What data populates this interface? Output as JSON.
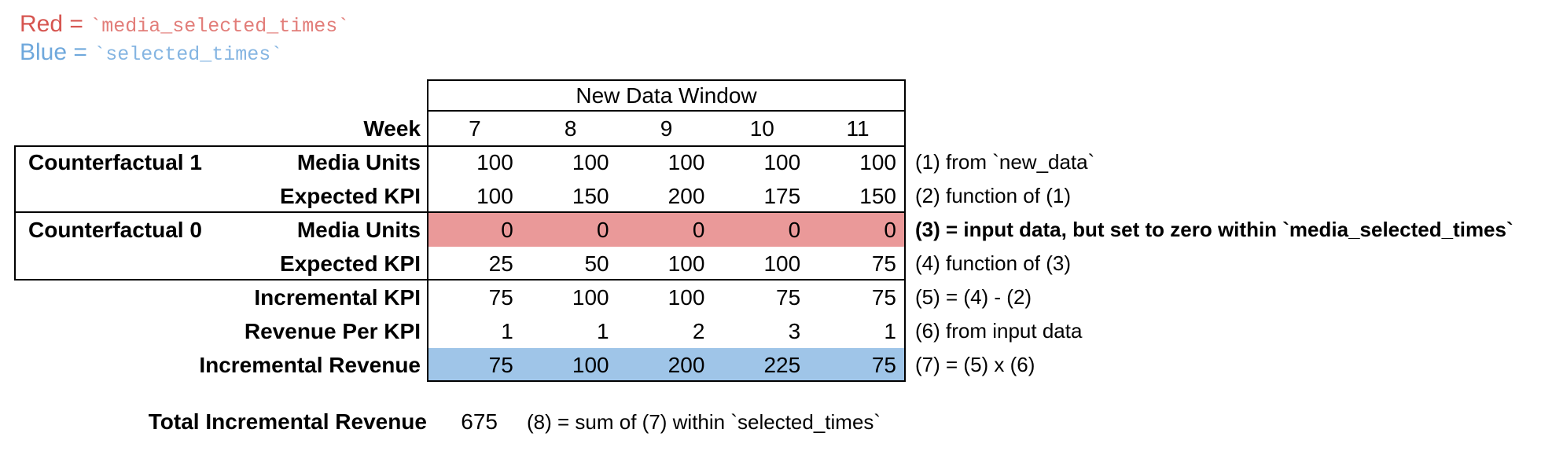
{
  "legend": {
    "red_prefix": "Red = ",
    "red_code": "`media_selected_times`",
    "blue_prefix": "Blue = ",
    "blue_code": "`selected_times`"
  },
  "table": {
    "header": "New Data Window",
    "week_label": "Week",
    "weeks": [
      "7",
      "8",
      "9",
      "10",
      "11"
    ],
    "rows": [
      {
        "group": "Counterfactual 1",
        "label": "Media Units",
        "values": [
          "100",
          "100",
          "100",
          "100",
          "100"
        ],
        "note": "(1) from `new_data`",
        "fill": "",
        "note_bold": false
      },
      {
        "group": "",
        "label": "Expected KPI",
        "values": [
          "100",
          "150",
          "200",
          "175",
          "150"
        ],
        "note": "(2) function of (1)",
        "fill": "",
        "note_bold": false
      },
      {
        "group": "Counterfactual 0",
        "label": "Media Units",
        "values": [
          "0",
          "0",
          "0",
          "0",
          "0"
        ],
        "note": "(3) = input data, but set to zero within `media_selected_times`",
        "fill": "red",
        "note_bold": true
      },
      {
        "group": "",
        "label": "Expected KPI",
        "values": [
          "25",
          "50",
          "100",
          "100",
          "75"
        ],
        "note": "(4) function of (3)",
        "fill": "",
        "note_bold": false
      },
      {
        "group": "",
        "label": "Incremental KPI",
        "values": [
          "75",
          "100",
          "100",
          "75",
          "75"
        ],
        "note": "(5) = (4) - (2)",
        "fill": "",
        "note_bold": false
      },
      {
        "group": "",
        "label": "Revenue Per KPI",
        "values": [
          "1",
          "1",
          "2",
          "3",
          "1"
        ],
        "note": "(6) from input data",
        "fill": "",
        "note_bold": false
      },
      {
        "group": "",
        "label": "Incremental Revenue",
        "values": [
          "75",
          "100",
          "200",
          "225",
          "75"
        ],
        "note": "(7) = (5) x (6)",
        "fill": "blue",
        "note_bold": false
      }
    ]
  },
  "summary": {
    "label": "Total Incremental Revenue",
    "value": "675",
    "note": "(8) = sum of (7) within `selected_times`"
  },
  "colors": {
    "red_text": "#d65550",
    "red_code_text": "#e27d79",
    "blue_text": "#6fa8dc",
    "blue_code_text": "#85b5e2",
    "red_fill": "#ea9999",
    "blue_fill": "#9fc5e8",
    "border": "#000000"
  }
}
